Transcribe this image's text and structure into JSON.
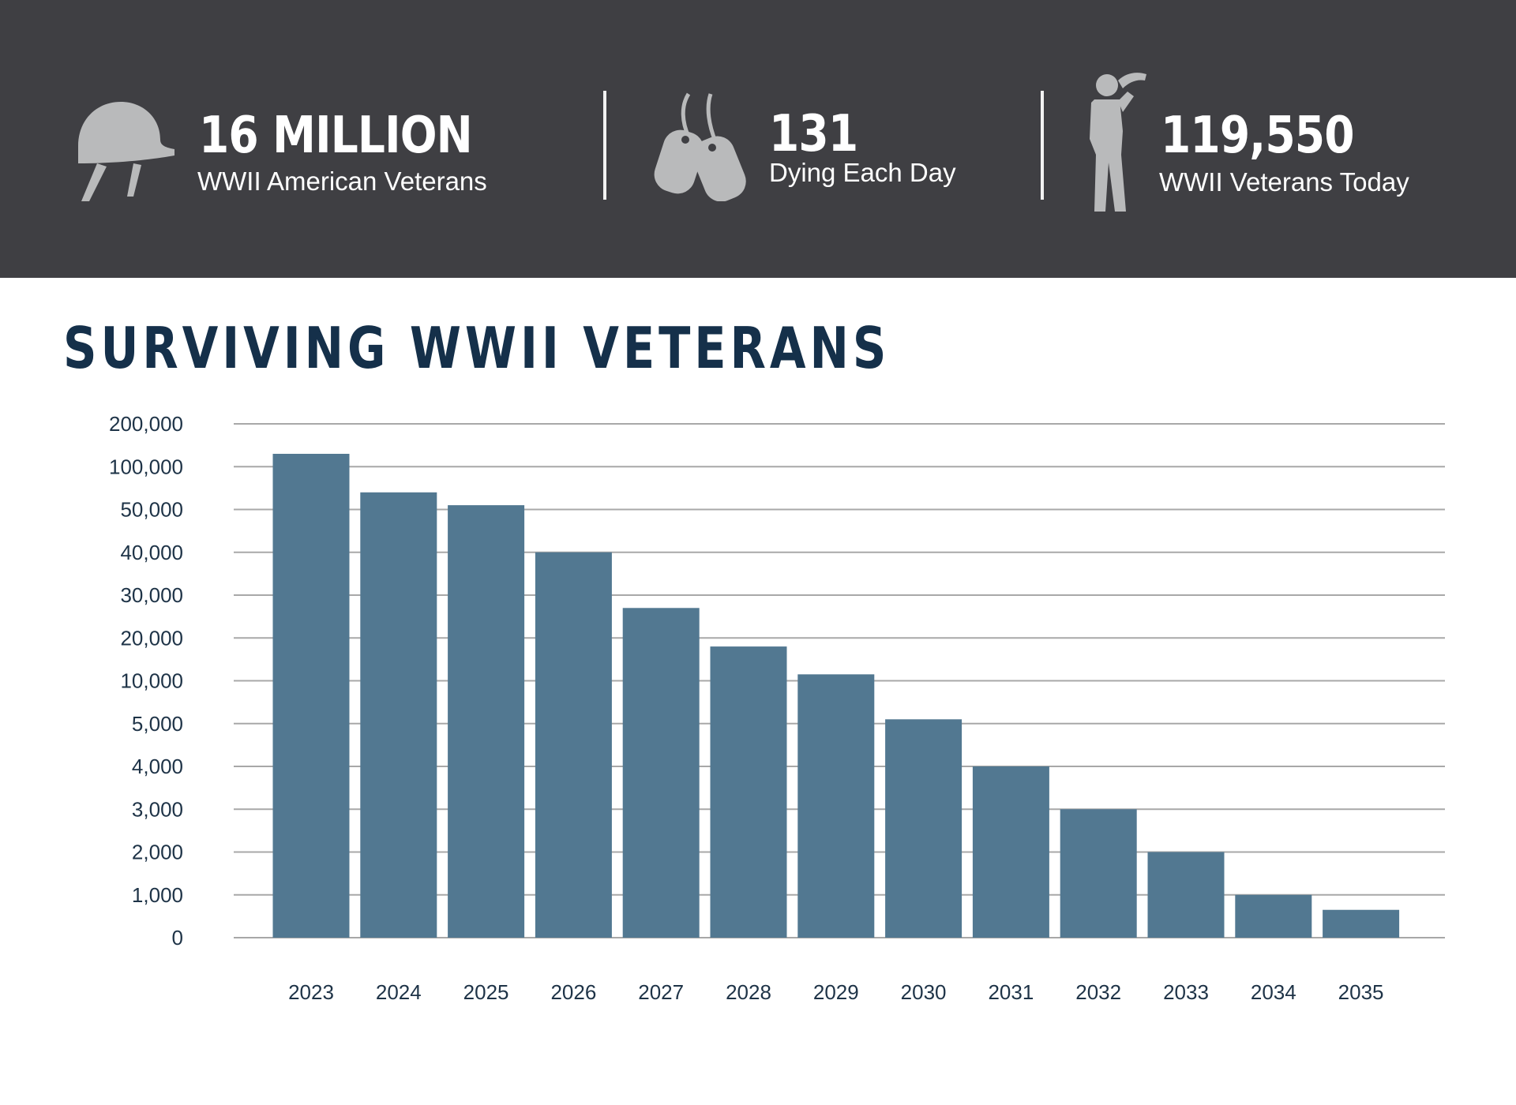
{
  "stats": [
    {
      "value": "16 MILLION",
      "label": "WWII American Veterans",
      "icon": "helmet-icon"
    },
    {
      "value": "131",
      "label": "Dying Each Day",
      "icon": "dog-tags-icon"
    },
    {
      "value": "119,550",
      "label": "WWII Veterans Today",
      "icon": "saluting-soldier-icon"
    }
  ],
  "colors": {
    "header_bg": "#3f3f43",
    "icon": "#b9babb",
    "bar": "#527891",
    "grid": "#a8a8a8",
    "title": "#15304a"
  },
  "chart_data": {
    "type": "bar",
    "title": "SURVIVING WWII VETERANS",
    "xlabel": "",
    "ylabel": "",
    "y_scale": "categorical-ticks (non-linear)",
    "y_ticks": [
      "200,000",
      "100,000",
      "50,000",
      "40,000",
      "30,000",
      "20,000",
      "10,000",
      "5,000",
      "4,000",
      "3,000",
      "2,000",
      "1,000",
      "0"
    ],
    "y_tick_values": [
      200000,
      100000,
      50000,
      40000,
      30000,
      20000,
      10000,
      5000,
      4000,
      3000,
      2000,
      1000,
      0
    ],
    "categories": [
      "2023",
      "2024",
      "2025",
      "2026",
      "2027",
      "2028",
      "2029",
      "2030",
      "2031",
      "2032",
      "2033",
      "2034",
      "2035"
    ],
    "values": [
      130000,
      70000,
      55000,
      40000,
      27000,
      18000,
      11500,
      5500,
      4000,
      3000,
      2000,
      1000,
      650
    ],
    "grid": true,
    "legend": "none"
  }
}
